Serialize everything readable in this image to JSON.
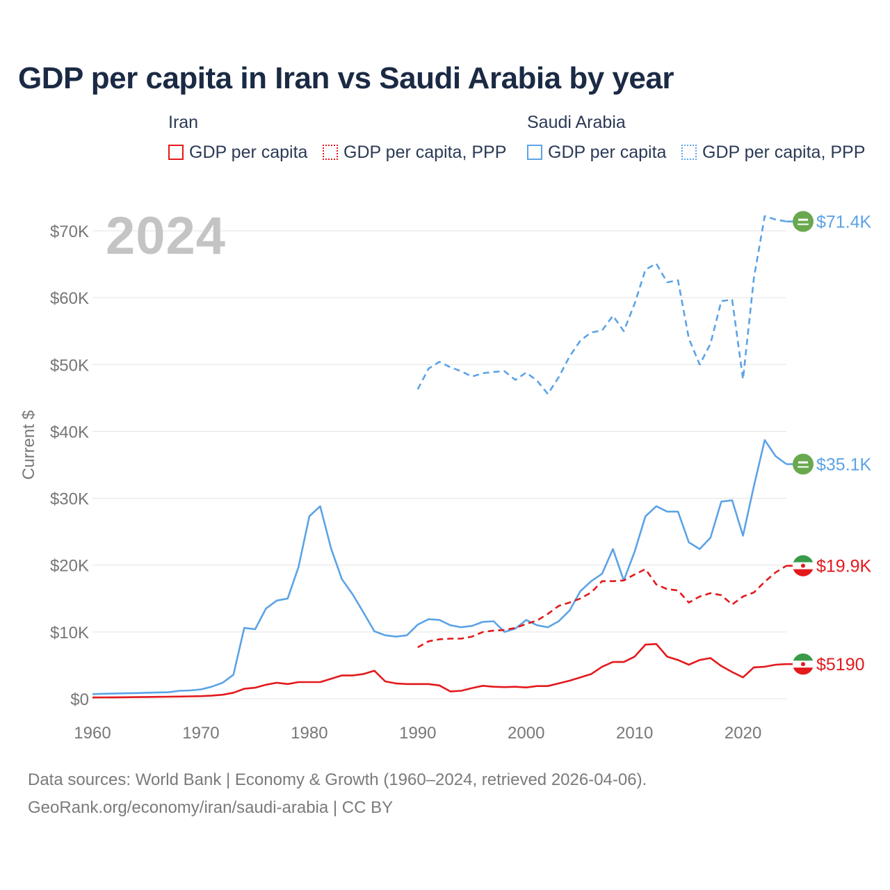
{
  "title": "GDP per capita in Iran vs Saudi Arabia by year",
  "year": "2024",
  "colors": {
    "iran": "#e3191c",
    "saudi": "#5ba3e6",
    "grid": "#e3e3e3",
    "axis": "#777777",
    "title": "#1b2a44",
    "flag_saudi": "#6aa84f",
    "flag_iran_green": "#3a9a4a",
    "flag_iran_red": "#e3191c"
  },
  "legend": {
    "iran": {
      "name": "Iran",
      "gdp": "GDP per capita",
      "ppp": "GDP per capita, PPP"
    },
    "saudi": {
      "name": "Saudi Arabia",
      "gdp": "GDP per capita",
      "ppp": "GDP per capita, PPP"
    }
  },
  "footer": {
    "line1": "Data sources: World Bank | Economy & Growth (1960–2024, retrieved 2026-04-06).",
    "line2": "GeoRank.org/economy/iran/saudi-arabia | CC BY"
  },
  "end_labels": {
    "saudi_ppp": "$71.4K",
    "saudi_gdp": "$35.1K",
    "iran_ppp": "$19.9K",
    "iran_gdp": "$5190"
  },
  "chart_data": {
    "type": "line",
    "title": "GDP per capita in Iran vs Saudi Arabia by year",
    "xlabel": "",
    "ylabel": "Current $",
    "xlim": [
      1960,
      2024
    ],
    "ylim": [
      0,
      75000
    ],
    "x_ticks": [
      1960,
      1970,
      1980,
      1990,
      2000,
      2010,
      2020
    ],
    "y_ticks": [
      0,
      10000,
      20000,
      30000,
      40000,
      50000,
      60000,
      70000
    ],
    "y_tick_labels": [
      "$0",
      "$10K",
      "$20K",
      "$30K",
      "$40K",
      "$50K",
      "$60K",
      "$70K"
    ],
    "grid": true,
    "series": [
      {
        "name": "Saudi Arabia GDP per capita, PPP",
        "key": "saudi_ppp",
        "color": "#5ba3e6",
        "dash": "dashed",
        "start": 1990,
        "values": [
          46300,
          49400,
          50400,
          49600,
          49000,
          48200,
          48700,
          48900,
          49000,
          47700,
          48800,
          47600,
          45600,
          48100,
          51200,
          53600,
          54800,
          55100,
          57300,
          55000,
          59100,
          64200,
          65100,
          62300,
          62600,
          53900,
          50000,
          53100,
          59500,
          59700,
          47800,
          62900,
          72200,
          71700,
          71400
        ]
      },
      {
        "name": "Saudi Arabia GDP per capita",
        "key": "saudi_gdp",
        "color": "#5ba3e6",
        "dash": "solid",
        "start": 1960,
        "values": [
          700,
          750,
          790,
          820,
          850,
          900,
          950,
          980,
          1200,
          1250,
          1400,
          1800,
          2400,
          3600,
          10600,
          10400,
          13500,
          14700,
          15000,
          19700,
          27300,
          28800,
          22500,
          17900,
          15600,
          12900,
          10100,
          9500,
          9300,
          9500,
          11100,
          11900,
          11800,
          11000,
          10700,
          10900,
          11500,
          11600,
          10000,
          10500,
          11800,
          11000,
          10700,
          11600,
          13200,
          16100,
          17600,
          18700,
          22400,
          17700,
          22000,
          27300,
          28800,
          28000,
          28000,
          23400,
          22400,
          24100,
          29500,
          29700,
          24400,
          31800,
          38700,
          36300,
          35100
        ]
      },
      {
        "name": "Iran GDP per capita, PPP",
        "key": "iran_ppp",
        "color": "#e3191c",
        "dash": "dashed",
        "start": 1990,
        "values": [
          7700,
          8600,
          8900,
          9000,
          9000,
          9300,
          10000,
          10200,
          10300,
          10600,
          11200,
          11700,
          12700,
          13900,
          14400,
          15000,
          15900,
          17600,
          17600,
          17700,
          18600,
          19400,
          17100,
          16400,
          16200,
          14400,
          15300,
          15800,
          15500,
          14100,
          15300,
          15900,
          17500,
          18900,
          19900
        ]
      },
      {
        "name": "Iran GDP per capita",
        "key": "iran_gdp",
        "color": "#e3191c",
        "dash": "solid",
        "start": 1960,
        "values": [
          200,
          210,
          220,
          230,
          250,
          270,
          290,
          310,
          330,
          360,
          400,
          480,
          600,
          900,
          1500,
          1650,
          2100,
          2400,
          2200,
          2500,
          2500,
          2500,
          3000,
          3500,
          3500,
          3700,
          4200,
          2600,
          2300,
          2200,
          2200,
          2200,
          2000,
          1100,
          1200,
          1600,
          1950,
          1800,
          1750,
          1800,
          1700,
          1900,
          1900,
          2300,
          2700,
          3200,
          3700,
          4800,
          5500,
          5500,
          6300,
          8100,
          8200,
          6300,
          5800,
          5100,
          5800,
          6100,
          4900,
          4000,
          3200,
          4700,
          4800,
          5100,
          5190
        ]
      }
    ]
  }
}
